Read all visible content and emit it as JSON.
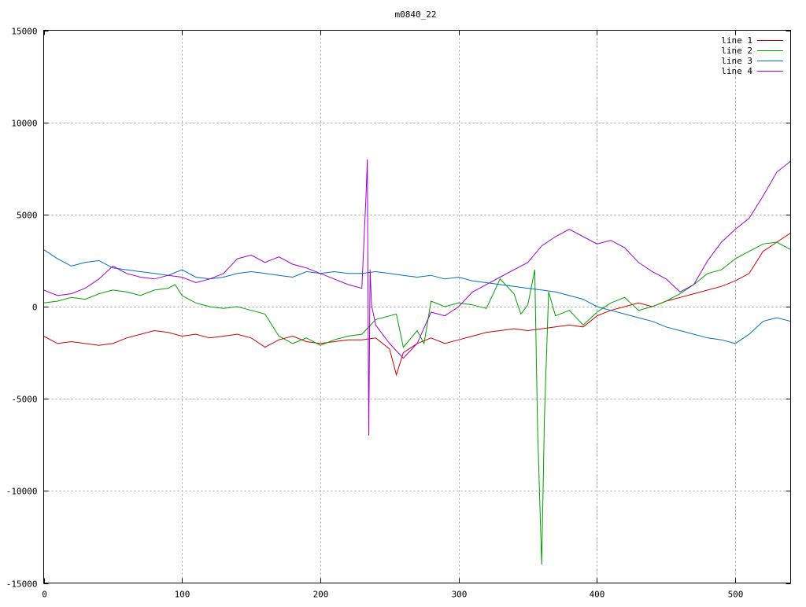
{
  "chart_data": {
    "type": "line",
    "title": "m0840_22",
    "xlabel": "",
    "ylabel": "",
    "xlim": [
      0,
      540
    ],
    "ylim": [
      -15000,
      15000
    ],
    "x_ticks": [
      0,
      100,
      200,
      300,
      400,
      500
    ],
    "y_ticks": [
      -15000,
      -10000,
      -5000,
      0,
      5000,
      10000,
      15000
    ],
    "grid": true,
    "legend_position": "top-right",
    "series": [
      {
        "name": "line 1",
        "color": "#cc0000",
        "x": [
          0,
          10,
          20,
          30,
          40,
          50,
          60,
          70,
          80,
          90,
          100,
          110,
          120,
          130,
          140,
          150,
          160,
          170,
          180,
          190,
          200,
          210,
          220,
          230,
          240,
          250,
          255,
          260,
          270,
          280,
          290,
          300,
          310,
          320,
          330,
          340,
          350,
          360,
          370,
          380,
          390,
          400,
          410,
          420,
          430,
          440,
          450,
          460,
          470,
          480,
          490,
          500,
          510,
          520,
          530,
          540
        ],
        "y": [
          -1600,
          -2000,
          -1900,
          -2000,
          -2100,
          -2000,
          -1700,
          -1500,
          -1300,
          -1400,
          -1600,
          -1500,
          -1700,
          -1600,
          -1500,
          -1700,
          -2200,
          -1800,
          -1600,
          -1900,
          -2000,
          -1900,
          -1800,
          -1800,
          -1700,
          -2300,
          -3700,
          -2500,
          -2000,
          -1700,
          -2000,
          -1800,
          -1600,
          -1400,
          -1300,
          -1200,
          -1300,
          -1200,
          -1100,
          -1000,
          -1100,
          -500,
          -200,
          0,
          200,
          0,
          300,
          500,
          700,
          900,
          1100,
          1400,
          1800,
          3000,
          3500,
          4000
        ]
      },
      {
        "name": "line 2",
        "color": "#00a000",
        "x": [
          0,
          10,
          20,
          30,
          40,
          50,
          60,
          70,
          80,
          90,
          95,
          100,
          110,
          120,
          130,
          140,
          150,
          160,
          170,
          180,
          190,
          200,
          210,
          220,
          230,
          240,
          250,
          255,
          260,
          270,
          275,
          280,
          290,
          300,
          310,
          320,
          330,
          340,
          345,
          350,
          355,
          357,
          360,
          362,
          365,
          370,
          380,
          390,
          400,
          410,
          420,
          430,
          440,
          450,
          460,
          470,
          480,
          490,
          500,
          510,
          520,
          530,
          540
        ],
        "y": [
          200,
          300,
          500,
          400,
          700,
          900,
          800,
          600,
          900,
          1000,
          1200,
          600,
          200,
          0,
          -100,
          0,
          -200,
          -400,
          -1600,
          -2000,
          -1700,
          -2100,
          -1800,
          -1600,
          -1500,
          -700,
          -500,
          -400,
          -2200,
          -1300,
          -2000,
          300,
          0,
          200,
          100,
          -100,
          1500,
          700,
          -400,
          100,
          2000,
          -6500,
          -14000,
          -6000,
          800,
          -500,
          -200,
          -1000,
          -300,
          200,
          500,
          -200,
          0,
          300,
          700,
          1200,
          1800,
          2000,
          2600,
          3000,
          3400,
          3500,
          3100
        ]
      },
      {
        "name": "line 3",
        "color": "#0070c0",
        "x": [
          0,
          10,
          20,
          30,
          40,
          50,
          60,
          70,
          80,
          90,
          100,
          110,
          120,
          130,
          140,
          150,
          160,
          170,
          180,
          190,
          200,
          210,
          220,
          230,
          240,
          250,
          260,
          270,
          280,
          290,
          300,
          310,
          320,
          330,
          340,
          350,
          360,
          370,
          380,
          390,
          400,
          410,
          420,
          430,
          440,
          450,
          460,
          470,
          480,
          490,
          500,
          510,
          520,
          530,
          540
        ],
        "y": [
          3100,
          2600,
          2200,
          2400,
          2500,
          2100,
          2000,
          1900,
          1800,
          1700,
          2000,
          1600,
          1500,
          1600,
          1800,
          1900,
          1800,
          1700,
          1600,
          1900,
          1800,
          1900,
          1800,
          1800,
          1900,
          1800,
          1700,
          1600,
          1700,
          1500,
          1600,
          1400,
          1300,
          1200,
          1100,
          1000,
          900,
          800,
          600,
          400,
          0,
          -200,
          -400,
          -600,
          -800,
          -1100,
          -1300,
          -1500,
          -1700,
          -1800,
          -2000,
          -1500,
          -800,
          -600,
          -800
        ]
      },
      {
        "name": "line 4",
        "color": "#a000d0",
        "x": [
          0,
          10,
          20,
          30,
          40,
          50,
          60,
          70,
          80,
          90,
          100,
          110,
          120,
          130,
          140,
          150,
          160,
          170,
          180,
          190,
          200,
          210,
          220,
          230,
          233,
          234,
          235,
          236,
          237,
          240,
          250,
          260,
          270,
          280,
          290,
          300,
          310,
          320,
          330,
          340,
          350,
          360,
          370,
          380,
          390,
          400,
          410,
          420,
          430,
          440,
          450,
          460,
          470,
          480,
          490,
          500,
          510,
          520,
          530,
          540
        ],
        "y": [
          900,
          600,
          700,
          1000,
          1500,
          2200,
          1800,
          1600,
          1500,
          1700,
          1600,
          1300,
          1500,
          1800,
          2600,
          2800,
          2400,
          2700,
          2300,
          2100,
          1800,
          1500,
          1200,
          1000,
          6000,
          8000,
          -7000,
          2000,
          100,
          -1000,
          -2000,
          -2800,
          -2000,
          -300,
          -500,
          0,
          800,
          1200,
          1600,
          2000,
          2400,
          3300,
          3800,
          4200,
          3800,
          3400,
          3600,
          3200,
          2400,
          1900,
          1500,
          800,
          1200,
          2500,
          3500,
          4200,
          4800,
          6000,
          7300,
          7900
        ]
      }
    ]
  }
}
